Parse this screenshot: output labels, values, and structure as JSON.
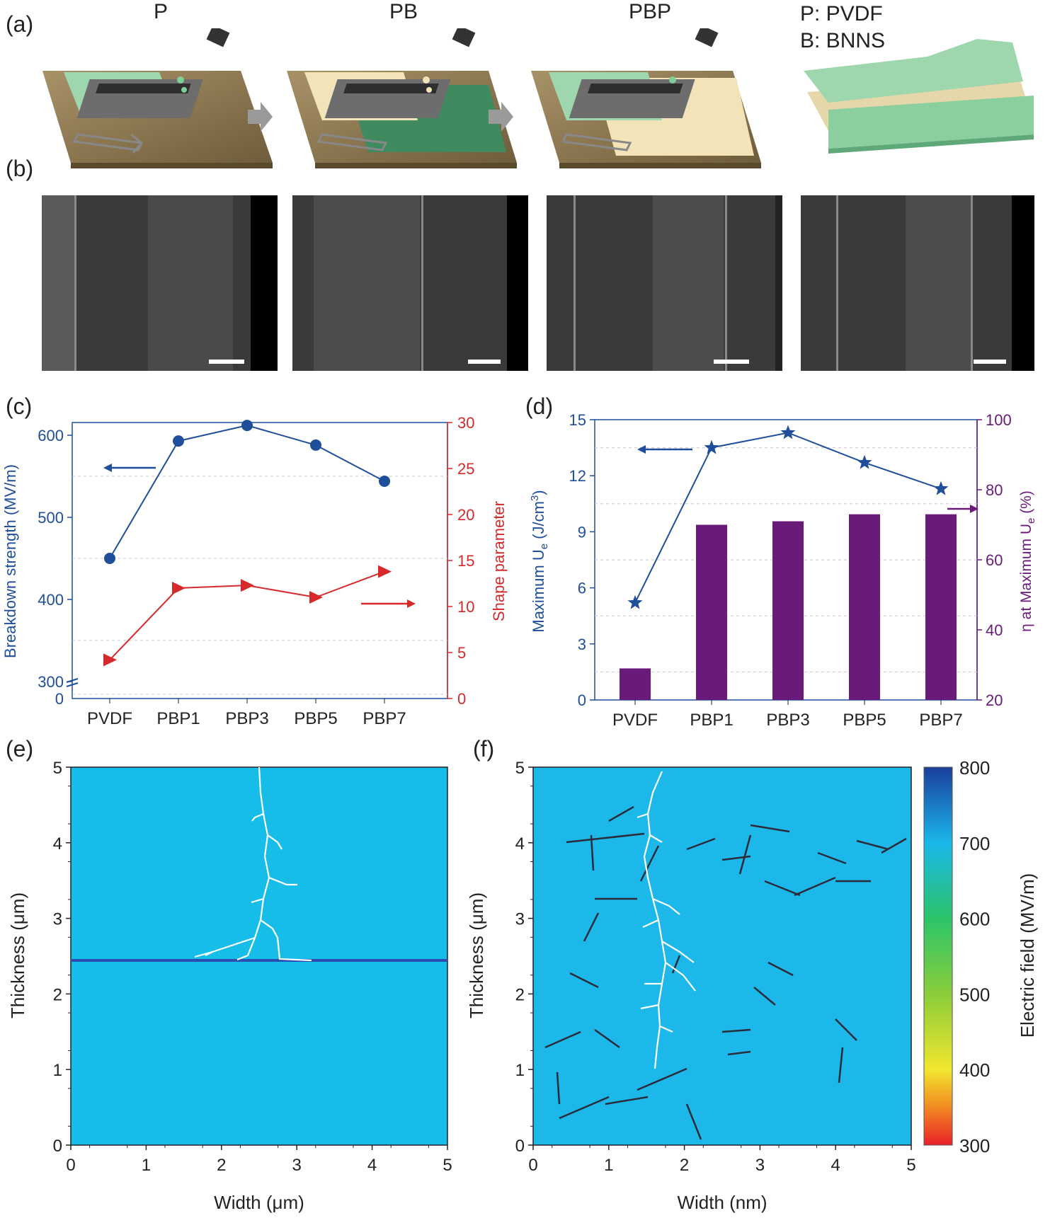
{
  "panel_labels": {
    "a": "(a)",
    "b": "(b)",
    "c": "(c)",
    "d": "(d)",
    "e": "(e)",
    "f": "(f)"
  },
  "panel_a": {
    "steps": [
      "P",
      "PB",
      "PBP"
    ],
    "legend": [
      "P: PVDF",
      "B: BNNS"
    ],
    "colors": {
      "pvdf": "#9ed6ad",
      "bnns": "#f2e3b8",
      "substrate": "#8a7650"
    }
  },
  "panel_b": {
    "images": 4
  },
  "chart_data": [
    {
      "id": "c",
      "type": "line",
      "categories": [
        "PVDF",
        "PBP1",
        "PBP3",
        "PBP5",
        "PBP7"
      ],
      "series": [
        {
          "name": "Breakdown strength (MV/m)",
          "axis": "left",
          "color": "#1f4e9b",
          "marker": "circle",
          "values": [
            450,
            593,
            612,
            588,
            544
          ]
        },
        {
          "name": "Shape parameter",
          "axis": "right",
          "color": "#d7292b",
          "marker": "triangle",
          "values": [
            4.2,
            12,
            12.3,
            11,
            13.8
          ]
        }
      ],
      "yleft": {
        "label": "Breakdown strength (MV/m)",
        "ticks": [
          "300",
          "400",
          "500",
          "600"
        ],
        "break_label": "0"
      },
      "yright": {
        "label": "Shape parameter",
        "ticks": [
          "0",
          "5",
          "10",
          "15",
          "20",
          "25",
          "30"
        ],
        "range": [
          0,
          30
        ]
      }
    },
    {
      "id": "d",
      "type": "bar+line",
      "categories": [
        "PVDF",
        "PBP1",
        "PBP3",
        "PBP5",
        "PBP7"
      ],
      "bars": {
        "name": "η at Maximum Ue (%)",
        "axis": "right",
        "color": "#6a1a7a",
        "values": [
          29,
          70,
          71,
          73,
          73
        ]
      },
      "line": {
        "name": "Maximum Ue (J/cm3)",
        "axis": "left",
        "color": "#1f4e9b",
        "marker": "star",
        "values": [
          5.2,
          13.5,
          14.3,
          12.7,
          11.3
        ]
      },
      "yleft": {
        "label": "Maximum Ue (J/cm3)",
        "ticks": [
          "0",
          "3",
          "6",
          "9",
          "12",
          "15"
        ],
        "range": [
          0,
          15
        ]
      },
      "yright": {
        "label": "η at Maximum Ue (%)",
        "ticks": [
          "20",
          "40",
          "60",
          "80",
          "100"
        ],
        "range": [
          20,
          100
        ]
      }
    }
  ],
  "panel_e": {
    "xlabel": "Width (μm)",
    "ylabel": "Thickness (μm)",
    "xticks": [
      "0",
      "1",
      "2",
      "3",
      "4",
      "5"
    ],
    "yticks": [
      "0",
      "1",
      "2",
      "3",
      "4",
      "5"
    ],
    "field_color": "#16bde8",
    "interface_color": "#2a4fb0"
  },
  "panel_f": {
    "xlabel": "Width (nm)",
    "ylabel": "Thickness (μm)",
    "xticks": [
      "0",
      "1",
      "2",
      "3",
      "4",
      "5"
    ],
    "yticks": [
      "0",
      "1",
      "2",
      "3",
      "4",
      "5"
    ],
    "field_color": "#1cb8ea",
    "colorbar": {
      "label": "Electric field (MV/m)",
      "ticks": [
        "800",
        "700",
        "600",
        "500",
        "400",
        "300"
      ]
    }
  }
}
